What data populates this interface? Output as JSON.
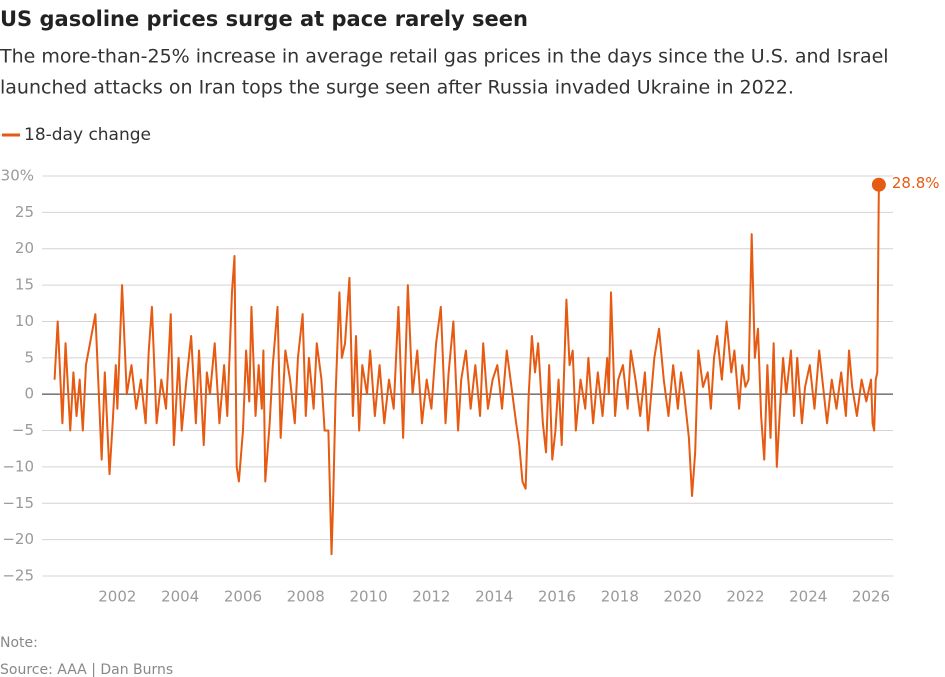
{
  "chart_data": {
    "type": "line",
    "title": "US gasoline prices surge at pace rarely seen",
    "subtitle": [
      "The more-than-25% increase in average retail gas prices in the days since the U.S. and Israel",
      "launched attacks on Iran tops the surge seen after Russia invaded Ukraine in 2022."
    ],
    "note": "Note:",
    "source": "Source: AAA | Dan Burns",
    "x": [
      2000.0,
      2000.1,
      2000.25,
      2000.35,
      2000.5,
      2000.6,
      2000.7,
      2000.8,
      2000.9,
      2001.0,
      2001.3,
      2001.5,
      2001.6,
      2001.75,
      2001.85,
      2001.95,
      2002.0,
      2002.15,
      2002.3,
      2002.45,
      2002.6,
      2002.75,
      2002.9,
      2003.0,
      2003.1,
      2003.25,
      2003.4,
      2003.55,
      2003.7,
      2003.8,
      2003.95,
      2004.05,
      2004.2,
      2004.35,
      2004.5,
      2004.6,
      2004.75,
      2004.85,
      2004.95,
      2005.1,
      2005.25,
      2005.4,
      2005.5,
      2005.65,
      2005.73,
      2005.8,
      2005.87,
      2006.0,
      2006.1,
      2006.2,
      2006.27,
      2006.4,
      2006.5,
      2006.6,
      2006.65,
      2006.71,
      2006.85,
      2006.95,
      2007.1,
      2007.2,
      2007.35,
      2007.5,
      2007.65,
      2007.75,
      2007.9,
      2008.0,
      2008.1,
      2008.25,
      2008.35,
      2008.5,
      2008.6,
      2008.72,
      2008.82,
      2008.87,
      2008.95,
      2009.07,
      2009.15,
      2009.25,
      2009.39,
      2009.5,
      2009.6,
      2009.7,
      2009.8,
      2009.95,
      2010.05,
      2010.2,
      2010.35,
      2010.5,
      2010.65,
      2010.8,
      2010.95,
      2011.1,
      2011.25,
      2011.4,
      2011.55,
      2011.7,
      2011.85,
      2012.0,
      2012.15,
      2012.3,
      2012.45,
      2012.55,
      2012.7,
      2012.85,
      2012.95,
      2013.1,
      2013.25,
      2013.4,
      2013.55,
      2013.65,
      2013.8,
      2013.95,
      2014.1,
      2014.25,
      2014.4,
      2014.55,
      2014.7,
      2014.8,
      2014.9,
      2015.0,
      2015.1,
      2015.2,
      2015.3,
      2015.4,
      2015.55,
      2015.65,
      2015.75,
      2015.85,
      2015.95,
      2016.05,
      2016.15,
      2016.3,
      2016.4,
      2016.5,
      2016.6,
      2016.75,
      2016.9,
      2017.0,
      2017.15,
      2017.3,
      2017.45,
      2017.6,
      2017.65,
      2017.72,
      2017.85,
      2017.95,
      2018.1,
      2018.25,
      2018.35,
      2018.5,
      2018.65,
      2018.8,
      2018.9,
      2019.0,
      2019.1,
      2019.25,
      2019.4,
      2019.55,
      2019.7,
      2019.85,
      2019.95,
      2020.05,
      2020.2,
      2020.3,
      2020.4,
      2020.5,
      2020.65,
      2020.8,
      2020.9,
      2021.0,
      2021.1,
      2021.25,
      2021.4,
      2021.55,
      2021.65,
      2021.8,
      2021.9,
      2022.0,
      2022.1,
      2022.2,
      2022.3,
      2022.4,
      2022.5,
      2022.6,
      2022.7,
      2022.8,
      2022.9,
      2023.0,
      2023.1,
      2023.2,
      2023.3,
      2023.45,
      2023.55,
      2023.65,
      2023.8,
      2023.9,
      2024.05,
      2024.2,
      2024.35,
      2024.5,
      2024.6,
      2024.75,
      2024.9,
      2025.05,
      2025.2,
      2025.3,
      2025.4,
      2025.55,
      2025.7,
      2025.85,
      2026.0,
      2026.05,
      2026.1,
      2026.15,
      2026.2,
      2026.24,
      2026.25
    ],
    "series": [
      {
        "name": "18-day change",
        "color": "#e65a12",
        "values": [
          2,
          10,
          -4,
          7,
          -5,
          3,
          -3,
          2,
          -5,
          4,
          11,
          -9,
          3,
          -11,
          -4,
          4,
          -2,
          15,
          0,
          4,
          -2,
          2,
          -4,
          6,
          12,
          -4,
          2,
          -2,
          11,
          -7,
          5,
          -5,
          2,
          8,
          -4,
          6,
          -7,
          3,
          0,
          7,
          -4,
          4,
          -3,
          14,
          19,
          -10,
          -12,
          -5,
          6,
          -1,
          12,
          -3,
          4,
          -2,
          6,
          -12,
          -4,
          4,
          12,
          -6,
          6,
          2,
          -4,
          5,
          11,
          -3,
          5,
          -2,
          7,
          2,
          -5,
          -5,
          -22,
          -15,
          0,
          14,
          5,
          7,
          16,
          -3,
          8,
          -5,
          4,
          0,
          6,
          -3,
          4,
          -4,
          2,
          -2,
          12,
          -6,
          15,
          0,
          6,
          -4,
          2,
          -2,
          7,
          12,
          -4,
          3,
          10,
          -5,
          2,
          6,
          -2,
          4,
          -3,
          7,
          -2,
          2,
          4,
          -2,
          6,
          1,
          -4,
          -7,
          -12,
          -13,
          0,
          8,
          3,
          7,
          -4,
          -8,
          4,
          -9,
          -5,
          2,
          -7,
          13,
          4,
          6,
          -5,
          2,
          -2,
          5,
          -4,
          3,
          -3,
          5,
          0,
          14,
          -3,
          2,
          4,
          -2,
          6,
          2,
          -3,
          3,
          -5,
          0,
          5,
          9,
          2,
          -3,
          4,
          -2,
          3,
          0,
          -6,
          -14,
          -8,
          6,
          1,
          3,
          -2,
          5,
          8,
          2,
          10,
          3,
          6,
          -2,
          4,
          1,
          2,
          22,
          5,
          9,
          -3,
          -9,
          4,
          -6,
          7,
          -10,
          -2,
          5,
          0,
          6,
          -3,
          5,
          -4,
          1,
          4,
          -2,
          6,
          0,
          -4,
          2,
          -2,
          3,
          -3,
          6,
          1,
          -3,
          2,
          -1,
          2,
          -4,
          -5,
          2,
          3,
          24,
          28.8
        ]
      }
    ],
    "end_label": {
      "value": 28.8,
      "label": "28.8%"
    },
    "xlim": [
      1999.6,
      2026.7
    ],
    "xticks": [
      2002,
      2004,
      2006,
      2008,
      2010,
      2012,
      2014,
      2016,
      2018,
      2020,
      2022,
      2024,
      2026
    ],
    "ylim": [
      -25,
      30
    ],
    "yticks": [
      {
        "value": -25,
        "label": "−25"
      },
      {
        "value": -20,
        "label": "−20"
      },
      {
        "value": -15,
        "label": "−15"
      },
      {
        "value": -10,
        "label": "−10"
      },
      {
        "value": -5,
        "label": "−5"
      },
      0,
      5,
      10,
      15,
      20,
      25,
      {
        "value": 30,
        "label": "30%"
      }
    ],
    "grid": true,
    "zero_line": true
  }
}
